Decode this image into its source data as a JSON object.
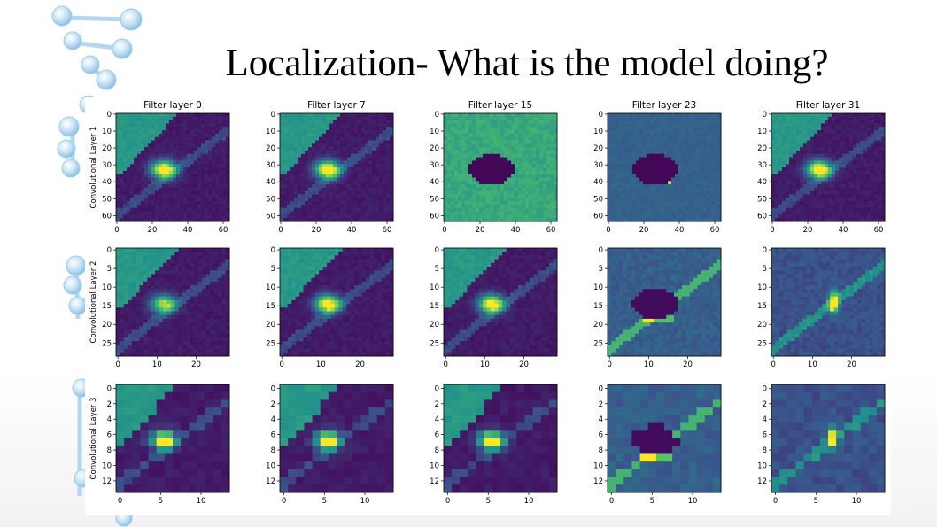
{
  "slide": {
    "title": "Localization- What is the model doing?"
  },
  "figure": {
    "columns": [
      {
        "title": "Filter layer 0"
      },
      {
        "title": "Filter layer 7"
      },
      {
        "title": "Filter layer 15"
      },
      {
        "title": "Filter layer 23"
      },
      {
        "title": "Filter layer 31"
      }
    ],
    "rows": [
      {
        "ylabel": "Convolutional Layer 1",
        "size": 64,
        "yticks": [
          0,
          10,
          20,
          30,
          40,
          50,
          60
        ],
        "xticks": [
          0,
          20,
          40,
          60
        ]
      },
      {
        "ylabel": "Convolutional Layer 2",
        "size": 29,
        "yticks": [
          0,
          5,
          10,
          15,
          20,
          25
        ],
        "xticks": [
          0,
          10,
          20
        ]
      },
      {
        "ylabel": "Convolutional Layer 3",
        "size": 14,
        "yticks": [
          0,
          2,
          4,
          6,
          8,
          10,
          12
        ],
        "xticks": [
          0,
          5,
          10
        ]
      }
    ],
    "colormap": [
      "#440154",
      "#3b528b",
      "#21918c",
      "#5ec962",
      "#fde725"
    ]
  }
}
